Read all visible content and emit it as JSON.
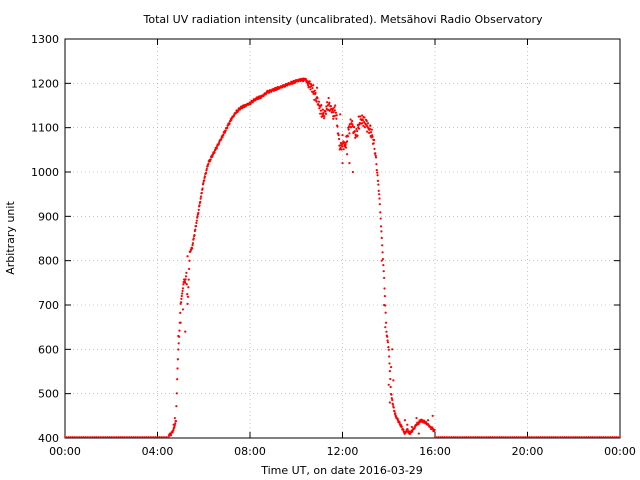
{
  "colors": {
    "series": "#ff0000",
    "grid": "#a0a0a0",
    "axis": "#000000",
    "background": "#ffffff"
  },
  "chart_data": {
    "type": "scatter",
    "title": "Total UV radiation intensity (uncalibrated). Metsähovi Radio Observatory",
    "xlabel": "Time UT, on date 2016-03-29",
    "ylabel": "Arbitrary unit",
    "x_unit": "hours UT",
    "xlim": [
      0,
      24
    ],
    "ylim": [
      400,
      1300
    ],
    "grid": true,
    "legend": "none",
    "x_ticks": [
      0,
      4,
      8,
      12,
      16,
      20,
      24
    ],
    "x_tick_labels": [
      "00:00",
      "04:00",
      "08:00",
      "12:00",
      "16:00",
      "20:00",
      "00:00"
    ],
    "y_ticks": [
      400,
      500,
      600,
      700,
      800,
      900,
      1000,
      1100,
      1200,
      1300
    ],
    "y_tick_labels": [
      "400",
      "500",
      "600",
      "700",
      "800",
      "900",
      "1000",
      "1100",
      "1200",
      "1300"
    ],
    "series": [
      {
        "marker": "dot",
        "x": [
          4.5,
          4.6,
          4.7,
          4.8,
          4.85,
          4.9,
          4.95,
          5.0,
          5.05,
          5.1,
          5.15,
          5.2,
          5.25,
          5.3,
          5.4,
          5.5,
          5.6,
          5.7,
          5.8,
          5.9,
          6.0,
          6.1,
          6.2,
          6.4,
          6.6,
          6.8,
          7.0,
          7.2,
          7.4,
          7.6,
          7.8,
          8.0,
          8.25,
          8.5,
          8.75,
          9.0,
          9.25,
          9.5,
          9.75,
          10.0,
          10.2,
          10.4,
          10.5,
          10.6,
          10.7,
          10.8,
          10.9,
          11.0,
          11.1,
          11.2,
          11.3,
          11.4,
          11.5,
          11.6,
          11.7,
          11.8,
          11.9,
          12.0,
          12.1,
          12.2,
          12.3,
          12.4,
          12.5,
          12.6,
          12.7,
          12.8,
          12.9,
          13.0,
          13.1,
          13.2,
          13.3,
          13.4,
          13.5,
          13.6,
          13.7,
          13.8,
          13.9,
          14.0,
          14.1,
          14.2,
          14.3,
          14.4,
          14.5,
          14.6,
          14.7,
          14.8,
          14.9,
          15.0,
          15.2,
          15.4,
          15.6,
          15.8,
          16.0
        ],
        "y": [
          405,
          410,
          420,
          440,
          535,
          600,
          640,
          700,
          720,
          740,
          760,
          750,
          770,
          700,
          820,
          830,
          860,
          890,
          920,
          950,
          980,
          1000,
          1020,
          1040,
          1060,
          1080,
          1100,
          1120,
          1135,
          1145,
          1150,
          1155,
          1165,
          1170,
          1180,
          1185,
          1190,
          1195,
          1200,
          1205,
          1208,
          1210,
          1200,
          1195,
          1185,
          1175,
          1165,
          1150,
          1135,
          1125,
          1140,
          1155,
          1145,
          1135,
          1140,
          1090,
          1050,
          1070,
          1060,
          1080,
          1100,
          1110,
          1090,
          1085,
          1105,
          1120,
          1115,
          1108,
          1100,
          1095,
          1080,
          1050,
          1000,
          940,
          850,
          760,
          640,
          600,
          500,
          470,
          450,
          440,
          430,
          420,
          410,
          420,
          410,
          415,
          430,
          440,
          435,
          425,
          415
        ],
        "noise": [
          [
            4.7,
            430
          ],
          [
            4.75,
            445
          ],
          [
            4.9,
            630
          ],
          [
            5.0,
            660
          ],
          [
            5.1,
            690
          ],
          [
            5.2,
            640
          ],
          [
            5.3,
            810
          ],
          [
            13.7,
            800
          ],
          [
            13.8,
            700
          ],
          [
            13.85,
            650
          ],
          [
            14.0,
            520
          ],
          [
            14.05,
            480
          ],
          [
            14.1,
            560
          ],
          [
            14.15,
            600
          ],
          [
            14.2,
            530
          ],
          [
            14.3,
            450
          ],
          [
            14.4,
            440
          ],
          [
            14.5,
            430
          ],
          [
            14.6,
            420
          ],
          [
            14.7,
            440
          ],
          [
            14.8,
            430
          ],
          [
            15.0,
            425
          ],
          [
            15.2,
            445
          ],
          [
            15.3,
            410
          ],
          [
            15.5,
            435
          ],
          [
            15.7,
            440
          ],
          [
            15.9,
            450
          ],
          [
            12.2,
            1040
          ],
          [
            12.3,
            1020
          ],
          [
            12.15,
            1055
          ],
          [
            11.6,
            1120
          ],
          [
            11.9,
            1130
          ],
          [
            12.0,
            1020
          ],
          [
            12.45,
            1000
          ],
          [
            12.7,
            1125
          ],
          [
            12.85,
            1110
          ],
          [
            13.05,
            1115
          ],
          [
            13.2,
            1105
          ],
          [
            10.3,
            1205
          ],
          [
            10.55,
            1200
          ],
          [
            10.9,
            1190
          ]
        ]
      }
    ]
  }
}
